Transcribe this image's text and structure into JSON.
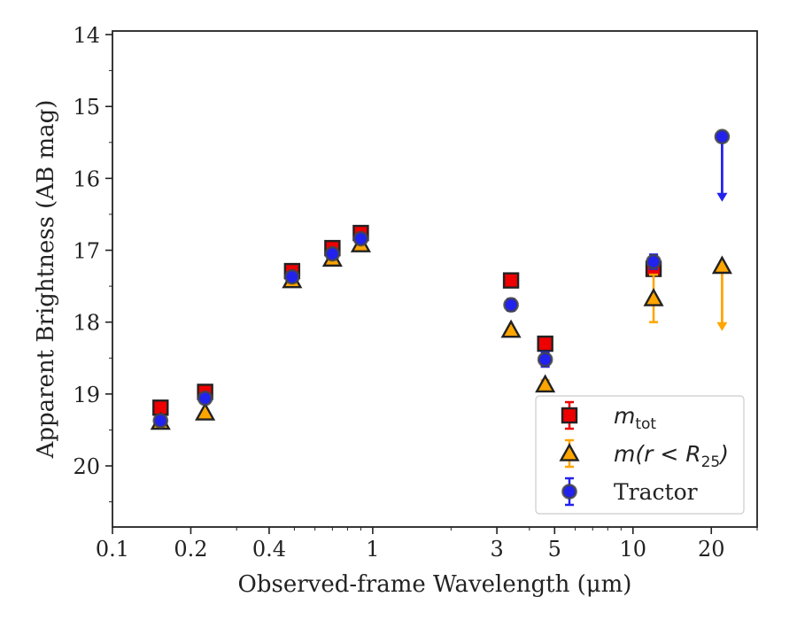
{
  "chart_data": {
    "type": "scatter",
    "xlabel": "Observed-frame Wavelength (μm)",
    "ylabel": "Apparent Brightness (AB mag)",
    "xscale": "log",
    "xlim": [
      0.1,
      30
    ],
    "ylim": [
      20.85,
      13.95
    ],
    "y_inverted": true,
    "grid": false,
    "legend_position": "lower-right",
    "x_ticks": [
      {
        "value": 0.1,
        "label": "0.1"
      },
      {
        "value": 0.2,
        "label": "0.2"
      },
      {
        "value": 0.4,
        "label": "0.4"
      },
      {
        "value": 1,
        "label": "1"
      },
      {
        "value": 3,
        "label": "3"
      },
      {
        "value": 5,
        "label": "5"
      },
      {
        "value": 10,
        "label": "10"
      },
      {
        "value": 20,
        "label": "20"
      }
    ],
    "y_ticks": [
      {
        "value": 14,
        "label": "14"
      },
      {
        "value": 15,
        "label": "15"
      },
      {
        "value": 16,
        "label": "16"
      },
      {
        "value": 17,
        "label": "17"
      },
      {
        "value": 18,
        "label": "18"
      },
      {
        "value": 19,
        "label": "19"
      },
      {
        "value": 20,
        "label": "20"
      }
    ],
    "series": [
      {
        "name": "m_tot",
        "legend_label": "m",
        "legend_sub": "tot",
        "marker": "square",
        "color": "#ee0000",
        "points": [
          {
            "x": 0.153,
            "y": 19.19,
            "err": 0.03
          },
          {
            "x": 0.227,
            "y": 18.97,
            "err": 0.03
          },
          {
            "x": 0.49,
            "y": 17.29,
            "err": 0.02
          },
          {
            "x": 0.7,
            "y": 16.97,
            "err": 0.02
          },
          {
            "x": 0.9,
            "y": 16.76,
            "err": 0.02
          },
          {
            "x": 3.4,
            "y": 17.42,
            "err": 0.02
          },
          {
            "x": 4.6,
            "y": 18.3,
            "err": 0.03
          },
          {
            "x": 12.0,
            "y": 17.26,
            "err": 0.05
          }
        ]
      },
      {
        "name": "m(r<R25)",
        "legend_label": "m(r < R",
        "legend_sub": "25",
        "legend_tail": ")",
        "marker": "triangle",
        "color": "#ffa500",
        "points": [
          {
            "x": 0.153,
            "y": 19.39,
            "err": 0.03
          },
          {
            "x": 0.227,
            "y": 19.26,
            "err": 0.03
          },
          {
            "x": 0.49,
            "y": 17.42,
            "err": 0.02
          },
          {
            "x": 0.7,
            "y": 17.12,
            "err": 0.02
          },
          {
            "x": 0.9,
            "y": 16.92,
            "err": 0.02
          },
          {
            "x": 3.4,
            "y": 18.11,
            "err": 0.03
          },
          {
            "x": 4.6,
            "y": 18.87,
            "err": 0.06
          },
          {
            "x": 12.0,
            "y": 17.67,
            "err": 0.33
          },
          {
            "x": 22.0,
            "y": 17.22,
            "upper_limit": true,
            "arrow_to": 18.1
          }
        ]
      },
      {
        "name": "Tractor",
        "legend_label": "Tractor",
        "marker": "circle",
        "color": "#2222ee",
        "points": [
          {
            "x": 0.153,
            "y": 19.37,
            "err": 0.03
          },
          {
            "x": 0.227,
            "y": 19.06,
            "err": 0.03
          },
          {
            "x": 0.49,
            "y": 17.37,
            "err": 0.02
          },
          {
            "x": 0.7,
            "y": 17.05,
            "err": 0.02
          },
          {
            "x": 0.9,
            "y": 16.84,
            "err": 0.02
          },
          {
            "x": 3.4,
            "y": 17.76,
            "err": 0.08
          },
          {
            "x": 4.6,
            "y": 18.52,
            "err": 0.1
          },
          {
            "x": 12.0,
            "y": 17.16,
            "err": 0.1
          },
          {
            "x": 22.0,
            "y": 15.42,
            "upper_limit": true,
            "arrow_to": 16.3
          }
        ]
      }
    ]
  }
}
